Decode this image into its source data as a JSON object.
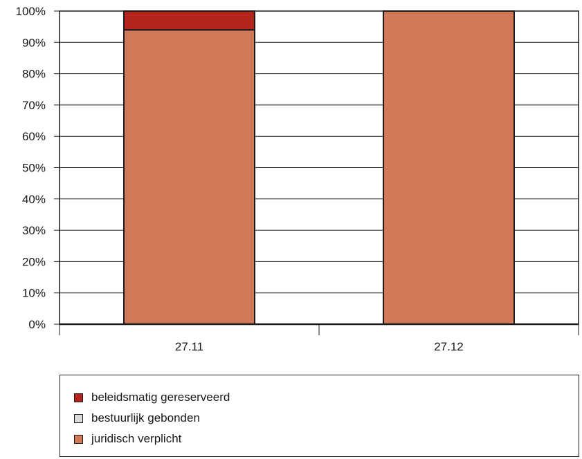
{
  "chart_data": {
    "type": "bar",
    "stacked": true,
    "percent": true,
    "categories": [
      "27.11",
      "27.12"
    ],
    "series": [
      {
        "name": "juridisch verplicht",
        "color": "#d07858",
        "values": [
          94,
          100
        ]
      },
      {
        "name": "bestuurlijk gebonden",
        "color": "#d9d9d9",
        "values": [
          0,
          0
        ]
      },
      {
        "name": "beleidsmatig gereserveerd",
        "color": "#b3241d",
        "values": [
          6,
          0
        ]
      }
    ],
    "yticks": [
      "0%",
      "10%",
      "20%",
      "30%",
      "40%",
      "50%",
      "60%",
      "70%",
      "80%",
      "90%",
      "100%"
    ],
    "ylim": [
      0,
      100
    ],
    "grid": true,
    "legend_position": "bottom",
    "legend_order": [
      "beleidsmatig gereserveerd",
      "bestuurlijk gebonden",
      "juridisch verplicht"
    ]
  }
}
